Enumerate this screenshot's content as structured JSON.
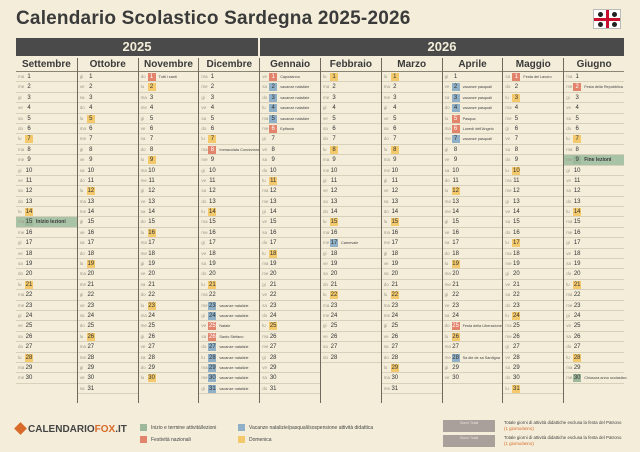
{
  "title": "Calendario Scolastico Sardegna 2025-2026",
  "years": [
    "2025",
    "2026"
  ],
  "months": [
    {
      "name": "Settembre",
      "days": 30,
      "start": 1,
      "notes": {
        "15": "Inizio lezioni"
      },
      "colors": {
        "7": "ye",
        "14": "ye",
        "21": "ye",
        "28": "ye",
        "15": "gr"
      }
    },
    {
      "name": "Ottobre",
      "days": 31,
      "start": 3,
      "notes": {},
      "colors": {
        "5": "ye",
        "12": "ye",
        "19": "ye",
        "26": "ye"
      }
    },
    {
      "name": "Novembre",
      "days": 30,
      "start": 6,
      "notes": {
        "1": "Tutti i santi"
      },
      "colors": {
        "1": "re",
        "2": "ye",
        "9": "ye",
        "16": "ye",
        "23": "ye",
        "30": "ye"
      }
    },
    {
      "name": "Dicembre",
      "days": 31,
      "start": 1,
      "notes": {
        "8": "Immacolata Concezione",
        "23": "vacanze natalizie",
        "24": "vacanze natalizie",
        "25": "Natale",
        "26": "Santo Stefano",
        "27": "vacanze natalizie",
        "28": "vacanze natalizie",
        "29": "vacanze natalizie",
        "30": "vacanze natalizie",
        "31": "vacanze natalizie"
      },
      "colors": {
        "7": "ye",
        "8": "re",
        "14": "ye",
        "21": "ye",
        "23": "bl",
        "24": "bl",
        "25": "re",
        "26": "re",
        "27": "bl",
        "28": "bl",
        "29": "bl",
        "30": "bl",
        "31": "bl"
      }
    },
    {
      "name": "Gennaio",
      "days": 31,
      "start": 4,
      "notes": {
        "1": "Capodanno",
        "2": "vacanze natalizie",
        "3": "vacanze natalizie",
        "4": "vacanze natalizie",
        "5": "vacanze natalizie",
        "6": "Epifania"
      },
      "colors": {
        "1": "re",
        "2": "bl",
        "3": "bl",
        "4": "bl",
        "5": "bl",
        "6": "re",
        "11": "ye",
        "18": "ye",
        "25": "ye"
      }
    },
    {
      "name": "Febbraio",
      "days": 28,
      "start": 0,
      "notes": {
        "17": "Carnevale"
      },
      "colors": {
        "1": "ye",
        "8": "ye",
        "15": "ye",
        "17": "bl",
        "22": "ye"
      }
    },
    {
      "name": "Marzo",
      "days": 31,
      "start": 0,
      "notes": {},
      "colors": {
        "1": "ye",
        "8": "ye",
        "15": "ye",
        "22": "ye",
        "29": "ye"
      }
    },
    {
      "name": "Aprile",
      "days": 30,
      "start": 3,
      "notes": {
        "2": "vacanze pasquali",
        "3": "vacanze pasquali",
        "4": "vacanze pasquali",
        "5": "Pasqua",
        "6": "Lunedì dell'Angelo",
        "7": "vacanze pasquali",
        "25": "Festa della Liberazione",
        "28": "Sa die de sa Sardigna"
      },
      "colors": {
        "2": "bl",
        "3": "bl",
        "4": "bl",
        "5": "re",
        "6": "re",
        "7": "bl",
        "12": "ye",
        "19": "ye",
        "25": "re",
        "26": "ye",
        "28": "bl"
      }
    },
    {
      "name": "Maggio",
      "days": 31,
      "start": 5,
      "notes": {
        "1": "Festa del Lavoro"
      },
      "colors": {
        "1": "re",
        "3": "ye",
        "10": "ye",
        "17": "ye",
        "24": "ye",
        "31": "ye"
      }
    },
    {
      "name": "Giugno",
      "days": 30,
      "start": 1,
      "notes": {
        "2": "Festa della Repubblica",
        "9": "Fine lezioni",
        "30": "Chiusura anno scolastico"
      },
      "colors": {
        "2": "re",
        "7": "ye",
        "9": "gr",
        "14": "ye",
        "21": "ye",
        "28": "ye",
        "30": "gr"
      }
    }
  ],
  "weekday_abbr": [
    "lu",
    "ma",
    "me",
    "gi",
    "ve",
    "sa",
    "do"
  ],
  "legend": {
    "inizio": "Inizio e termine attività/lezioni",
    "vacanze": "Vacanze natalizie/pasquali/sospensione attività didattica",
    "festivita": "Festività nazionali",
    "domenica": "Domenica"
  },
  "totals": [
    {
      "box": "Giorni Totali",
      "text": "Totale giorni di attività didattiche esclusa la festa del Patrono",
      "extra": "(1 giorno/anno)"
    },
    {
      "box": "Giorni Totali",
      "text": "Totale giorni di attività didattiche esclusa la festa del Patrono",
      "extra": "(1 giorno/anno)"
    }
  ],
  "brand": {
    "a": "CALENDARIO",
    "b": "FOX",
    "c": ".IT"
  },
  "colors": {
    "yellow": "#f4c96b",
    "red": "#e2836c",
    "blue": "#8fb0c7",
    "green": "#9db89a"
  }
}
